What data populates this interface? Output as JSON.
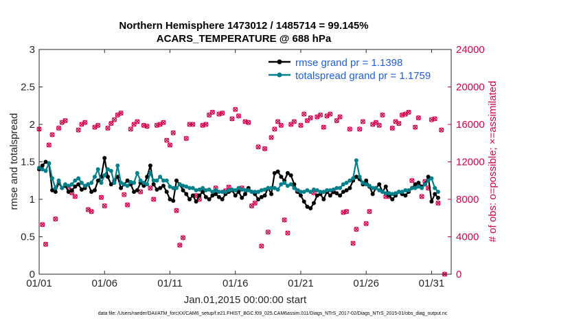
{
  "chart_data": {
    "type": "line",
    "title": [
      "Northern Hemisphere 1473012 / 1485714 = 99.145%",
      "ACARS_TEMPERATURE @ 688 hPa"
    ],
    "xlabel": "Jan.01,2015 00:00:00 start",
    "ylabel": "rmse and totalspread",
    "ylabel_right": "# of obs: o=possible; ×=assimilated",
    "footnote": "data file: /Users/raeder/DAI/ATM_forcXX/CAM6_setup/f.e21.FHIST_BGC.f09_025.CAM6assim.011/Diags_NTrS_2017-02/Diags_NTrS_2015-01/obs_diag_output.nc",
    "xlim": [
      1,
      32.5
    ],
    "ylim": [
      0,
      3
    ],
    "ylim_right": [
      0,
      24000
    ],
    "x_ticks": [
      1,
      6,
      11,
      16,
      21,
      26,
      31
    ],
    "x_tick_labels": [
      "01/01",
      "01/06",
      "01/11",
      "01/16",
      "01/21",
      "01/26",
      "01/31"
    ],
    "y_ticks": [
      0,
      0.5,
      1,
      1.5,
      2,
      2.5,
      3
    ],
    "y_tick_labels": [
      "0",
      "0.5",
      "1",
      "1.5",
      "2",
      "2.5",
      "3"
    ],
    "y_ticks_right": [
      0,
      4000,
      8000,
      12000,
      16000,
      20000,
      24000
    ],
    "y_tick_labels_right": [
      "0",
      "4000",
      "8000",
      "12000",
      "16000",
      "20000",
      "24000"
    ],
    "legend_position": "top-right",
    "series": [
      {
        "name": "rmse grand pr = 1.1398",
        "color": "#000000",
        "axis": "left",
        "x": [
          1.0,
          1.25,
          1.5,
          1.75,
          2.0,
          2.25,
          2.5,
          2.75,
          3.0,
          3.25,
          3.5,
          3.75,
          4.0,
          4.25,
          4.5,
          4.75,
          5.0,
          5.25,
          5.5,
          5.75,
          6.0,
          6.25,
          6.5,
          6.75,
          7.0,
          7.25,
          7.5,
          7.75,
          8.0,
          8.25,
          8.5,
          8.75,
          9.0,
          9.25,
          9.5,
          9.75,
          10.0,
          10.25,
          10.5,
          10.75,
          11.0,
          11.25,
          11.5,
          11.75,
          12.0,
          12.25,
          12.5,
          12.75,
          13.0,
          13.25,
          13.5,
          13.75,
          14.0,
          14.25,
          14.5,
          14.75,
          15.0,
          15.25,
          15.5,
          15.75,
          16.0,
          16.25,
          16.5,
          16.75,
          17.0,
          17.25,
          17.5,
          17.75,
          18.0,
          18.25,
          18.5,
          18.75,
          19.0,
          19.25,
          19.5,
          19.75,
          20.0,
          20.25,
          20.5,
          20.75,
          21.0,
          21.25,
          21.5,
          21.75,
          22.0,
          22.25,
          22.5,
          22.75,
          23.0,
          23.25,
          23.5,
          23.75,
          24.0,
          24.25,
          24.5,
          24.75,
          25.0,
          25.25,
          25.5,
          25.75,
          26.0,
          26.25,
          26.5,
          26.75,
          27.0,
          27.25,
          27.5,
          27.75,
          28.0,
          28.25,
          28.5,
          28.75,
          29.0,
          29.25,
          29.5,
          29.75,
          30.0,
          30.25,
          30.5,
          30.75,
          31.0,
          31.25,
          31.5
        ],
        "values": [
          1.4,
          1.45,
          1.5,
          1.48,
          1.12,
          1.1,
          1.22,
          1.15,
          1.18,
          1.1,
          1.12,
          1.17,
          1.2,
          1.13,
          1.15,
          1.2,
          1.1,
          1.12,
          1.25,
          1.3,
          1.55,
          1.3,
          1.2,
          1.25,
          1.3,
          1.15,
          1.2,
          1.25,
          1.2,
          1.1,
          1.12,
          1.22,
          1.18,
          1.3,
          1.45,
          1.2,
          1.13,
          1.15,
          1.18,
          1.1,
          1.0,
          0.98,
          1.25,
          1.2,
          1.12,
          1.07,
          1.0,
          1.05,
          0.97,
          1.05,
          1.1,
          1.03,
          1.0,
          1.05,
          1.07,
          1.03,
          1.0,
          1.07,
          1.1,
          1.12,
          1.05,
          1.1,
          1.02,
          1.07,
          1.15,
          1.1,
          1.07,
          1.0,
          1.03,
          1.05,
          1.15,
          1.07,
          1.35,
          1.37,
          1.3,
          1.25,
          1.35,
          1.32,
          1.2,
          1.1,
          1.05,
          0.97,
          0.9,
          0.88,
          0.95,
          1.05,
          1.07,
          1.0,
          1.1,
          1.05,
          1.1,
          1.08,
          1.05,
          1.1,
          1.12,
          1.15,
          1.25,
          1.3,
          1.27,
          1.2,
          1.25,
          1.17,
          1.07,
          1.15,
          1.2,
          1.1,
          1.17,
          1.05,
          1.0,
          1.05,
          1.1,
          1.07,
          1.05,
          1.1,
          1.15,
          1.2,
          1.22,
          1.17,
          1.2,
          1.3,
          0.97,
          1.07,
          1.02
        ]
      },
      {
        "name": "totalspread grand pr = 1.1759",
        "color": "#00808a",
        "axis": "left",
        "x": [
          1.0,
          1.25,
          1.5,
          1.75,
          2.0,
          2.25,
          2.5,
          2.75,
          3.0,
          3.25,
          3.5,
          3.75,
          4.0,
          4.25,
          4.5,
          4.75,
          5.0,
          5.25,
          5.5,
          5.75,
          6.0,
          6.25,
          6.5,
          6.75,
          7.0,
          7.25,
          7.5,
          7.75,
          8.0,
          8.25,
          8.5,
          8.75,
          9.0,
          9.25,
          9.5,
          9.75,
          10.0,
          10.25,
          10.5,
          10.75,
          11.0,
          11.25,
          11.5,
          11.75,
          12.0,
          12.25,
          12.5,
          12.75,
          13.0,
          13.25,
          13.5,
          13.75,
          14.0,
          14.25,
          14.5,
          14.75,
          15.0,
          15.25,
          15.5,
          15.75,
          16.0,
          16.25,
          16.5,
          16.75,
          17.0,
          17.25,
          17.5,
          17.75,
          18.0,
          18.25,
          18.5,
          18.75,
          19.0,
          19.25,
          19.5,
          19.75,
          20.0,
          20.25,
          20.5,
          20.75,
          21.0,
          21.25,
          21.5,
          21.75,
          22.0,
          22.25,
          22.5,
          22.75,
          23.0,
          23.25,
          23.5,
          23.75,
          24.0,
          24.25,
          24.5,
          24.75,
          25.0,
          25.25,
          25.5,
          25.75,
          26.0,
          26.25,
          26.5,
          26.75,
          27.0,
          27.25,
          27.5,
          27.75,
          28.0,
          28.25,
          28.5,
          28.75,
          29.0,
          29.25,
          29.5,
          29.75,
          30.0,
          30.25,
          30.5,
          30.75,
          31.0,
          31.25,
          31.5
        ],
        "values": [
          1.42,
          1.4,
          1.38,
          1.48,
          1.28,
          1.15,
          1.25,
          1.15,
          1.2,
          1.18,
          1.2,
          1.25,
          1.28,
          1.22,
          1.18,
          1.2,
          1.22,
          1.3,
          1.4,
          1.22,
          1.32,
          1.4,
          1.38,
          1.22,
          1.45,
          1.22,
          1.2,
          1.18,
          1.23,
          1.22,
          1.35,
          1.25,
          1.22,
          1.2,
          1.35,
          1.25,
          1.25,
          1.3,
          1.25,
          1.25,
          1.17,
          1.15,
          1.15,
          1.2,
          1.18,
          1.17,
          1.15,
          1.15,
          1.12,
          1.13,
          1.15,
          1.12,
          1.13,
          1.1,
          1.12,
          1.1,
          1.1,
          1.1,
          1.12,
          1.13,
          1.12,
          1.15,
          1.13,
          1.12,
          1.12,
          1.1,
          1.1,
          1.1,
          1.12,
          1.13,
          1.15,
          1.15,
          1.15,
          1.13,
          1.2,
          1.22,
          1.18,
          1.2,
          1.15,
          1.12,
          1.1,
          1.1,
          1.12,
          1.1,
          1.13,
          1.12,
          1.1,
          1.1,
          1.12,
          1.12,
          1.13,
          1.15,
          1.15,
          1.2,
          1.22,
          1.25,
          1.28,
          1.52,
          1.3,
          1.22,
          1.2,
          1.18,
          1.15,
          1.15,
          1.12,
          1.1,
          1.08,
          1.08,
          1.07,
          1.08,
          1.1,
          1.1,
          1.12,
          1.12,
          1.15,
          1.15,
          1.17,
          1.15,
          1.2,
          1.25,
          1.28,
          1.15,
          1.1
        ]
      },
      {
        "name": "# of obs",
        "color": "#d6004e",
        "axis": "right",
        "x": [
          1.0,
          1.25,
          1.5,
          1.75,
          2.0,
          2.25,
          2.5,
          2.75,
          3.0,
          3.25,
          3.5,
          3.75,
          4.0,
          4.25,
          4.5,
          4.75,
          5.0,
          5.25,
          5.5,
          5.75,
          6.0,
          6.25,
          6.5,
          6.75,
          7.0,
          7.25,
          7.5,
          7.75,
          8.0,
          8.25,
          8.5,
          8.75,
          9.0,
          9.25,
          9.5,
          9.75,
          10.0,
          10.25,
          10.5,
          10.75,
          11.0,
          11.25,
          11.5,
          11.75,
          12.0,
          12.25,
          12.5,
          12.75,
          13.0,
          13.25,
          13.5,
          13.75,
          14.0,
          14.25,
          14.5,
          14.75,
          15.0,
          15.25,
          15.5,
          15.75,
          16.0,
          16.25,
          16.5,
          16.75,
          17.0,
          17.25,
          17.5,
          17.75,
          18.0,
          18.25,
          18.5,
          18.75,
          19.0,
          19.25,
          19.5,
          19.75,
          20.0,
          20.25,
          20.5,
          20.75,
          21.0,
          21.25,
          21.5,
          21.75,
          22.0,
          22.25,
          22.5,
          22.75,
          23.0,
          23.25,
          23.5,
          23.75,
          24.0,
          24.25,
          24.5,
          24.75,
          25.0,
          25.25,
          25.5,
          25.75,
          26.0,
          26.25,
          26.5,
          26.75,
          27.0,
          27.25,
          27.5,
          27.75,
          28.0,
          28.25,
          28.5,
          28.75,
          29.0,
          29.25,
          29.5,
          29.75,
          30.0,
          30.25,
          30.5,
          30.75,
          31.0,
          31.25,
          31.5,
          31.75,
          32.0
        ],
        "values": [
          15500,
          5300,
          3200,
          13800,
          14900,
          5900,
          15600,
          16200,
          16400,
          9300,
          8700,
          8300,
          15400,
          16000,
          16200,
          6900,
          6700,
          15700,
          15900,
          8200,
          7300,
          15600,
          16100,
          16500,
          17000,
          17200,
          8500,
          7400,
          15500,
          16000,
          16300,
          8800,
          15900,
          15800,
          9200,
          8000,
          15900,
          16000,
          16200,
          14300,
          13800,
          15100,
          6800,
          3100,
          3900,
          14500,
          16000,
          16000,
          8400,
          8000,
          15900,
          16000,
          17000,
          17300,
          9200,
          17100,
          17200,
          8900,
          9300,
          16600,
          17600,
          16900,
          9200,
          16300,
          16200,
          7300,
          7600,
          13600,
          3000,
          13400,
          4500,
          14600,
          15500,
          16300,
          15900,
          5800,
          4400,
          16000,
          16300,
          8900,
          15900,
          17100,
          16400,
          16700,
          8700,
          16800,
          17000,
          15700,
          16900,
          17100,
          8800,
          16400,
          16800,
          6600,
          6700,
          15500,
          3300,
          4800,
          15500,
          16300,
          5400,
          6700,
          16000,
          16200,
          15900,
          17000,
          8300,
          8300,
          15600,
          16300,
          16100,
          17000,
          17100,
          17300,
          10000,
          15700,
          16700,
          8300,
          9900,
          9200,
          16500,
          16600,
          7600,
          15400,
          0
        ]
      }
    ]
  }
}
